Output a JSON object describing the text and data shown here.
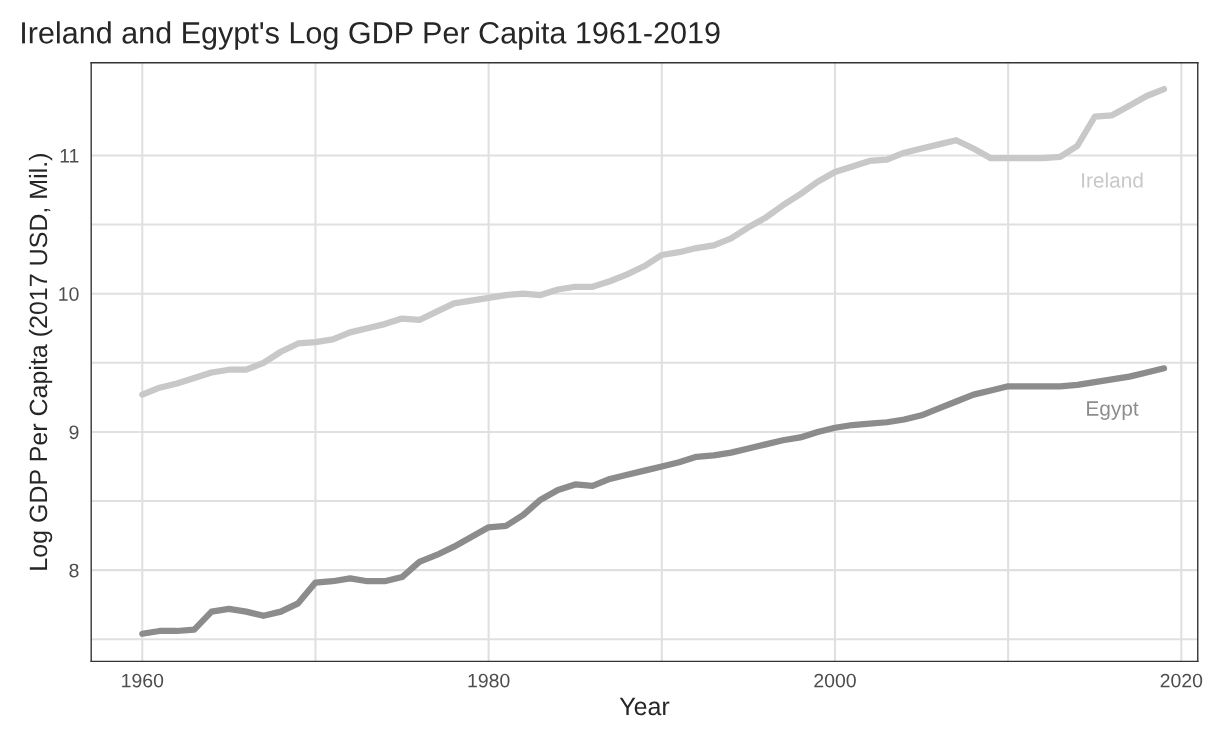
{
  "chart_data": {
    "type": "line",
    "title": "Ireland and Egypt's Log GDP Per Capita 1961-2019",
    "xlabel": "Year",
    "ylabel": "Log GDP Per Capita (2017 USD, Mil.)",
    "x": [
      1960,
      1961,
      1962,
      1963,
      1964,
      1965,
      1966,
      1967,
      1968,
      1969,
      1970,
      1971,
      1972,
      1973,
      1974,
      1975,
      1976,
      1977,
      1978,
      1979,
      1980,
      1981,
      1982,
      1983,
      1984,
      1985,
      1986,
      1987,
      1988,
      1989,
      1990,
      1991,
      1992,
      1993,
      1994,
      1995,
      1996,
      1997,
      1998,
      1999,
      2000,
      2001,
      2002,
      2003,
      2004,
      2005,
      2006,
      2007,
      2008,
      2009,
      2010,
      2011,
      2012,
      2013,
      2014,
      2015,
      2016,
      2017,
      2018,
      2019
    ],
    "series": [
      {
        "name": "Ireland",
        "color": "#c8c8c8",
        "values": [
          9.27,
          9.32,
          9.35,
          9.39,
          9.43,
          9.45,
          9.45,
          9.5,
          9.58,
          9.64,
          9.65,
          9.67,
          9.72,
          9.75,
          9.78,
          9.82,
          9.81,
          9.87,
          9.93,
          9.95,
          9.97,
          9.99,
          10.0,
          9.99,
          10.03,
          10.05,
          10.05,
          10.09,
          10.14,
          10.2,
          10.28,
          10.3,
          10.33,
          10.35,
          10.4,
          10.48,
          10.55,
          10.64,
          10.72,
          10.81,
          10.88,
          10.92,
          10.96,
          10.97,
          11.02,
          11.05,
          11.08,
          11.11,
          11.05,
          10.98,
          10.98,
          10.98,
          10.98,
          10.99,
          11.07,
          11.28,
          11.29,
          11.36,
          11.43,
          11.48
        ]
      },
      {
        "name": "Egypt",
        "color": "#8c8c8c",
        "values": [
          7.54,
          7.56,
          7.56,
          7.57,
          7.7,
          7.72,
          7.7,
          7.67,
          7.7,
          7.76,
          7.91,
          7.92,
          7.94,
          7.92,
          7.92,
          7.95,
          8.06,
          8.11,
          8.17,
          8.24,
          8.31,
          8.32,
          8.4,
          8.51,
          8.58,
          8.62,
          8.61,
          8.66,
          8.69,
          8.72,
          8.75,
          8.78,
          8.82,
          8.83,
          8.85,
          8.88,
          8.91,
          8.94,
          8.96,
          9.0,
          9.03,
          9.05,
          9.06,
          9.07,
          9.09,
          9.12,
          9.17,
          9.22,
          9.27,
          9.3,
          9.33,
          9.33,
          9.33,
          9.33,
          9.34,
          9.36,
          9.38,
          9.4,
          9.43,
          9.46
        ]
      }
    ],
    "xlim": [
      1957.05,
      2020.95
    ],
    "ylim": [
      7.34,
      11.67
    ],
    "xticks": [
      1960,
      1980,
      2000,
      2020
    ],
    "yticks": [
      8,
      9,
      10,
      11
    ],
    "grid": true,
    "legend": false,
    "line_style": "solid",
    "marker": "none"
  }
}
